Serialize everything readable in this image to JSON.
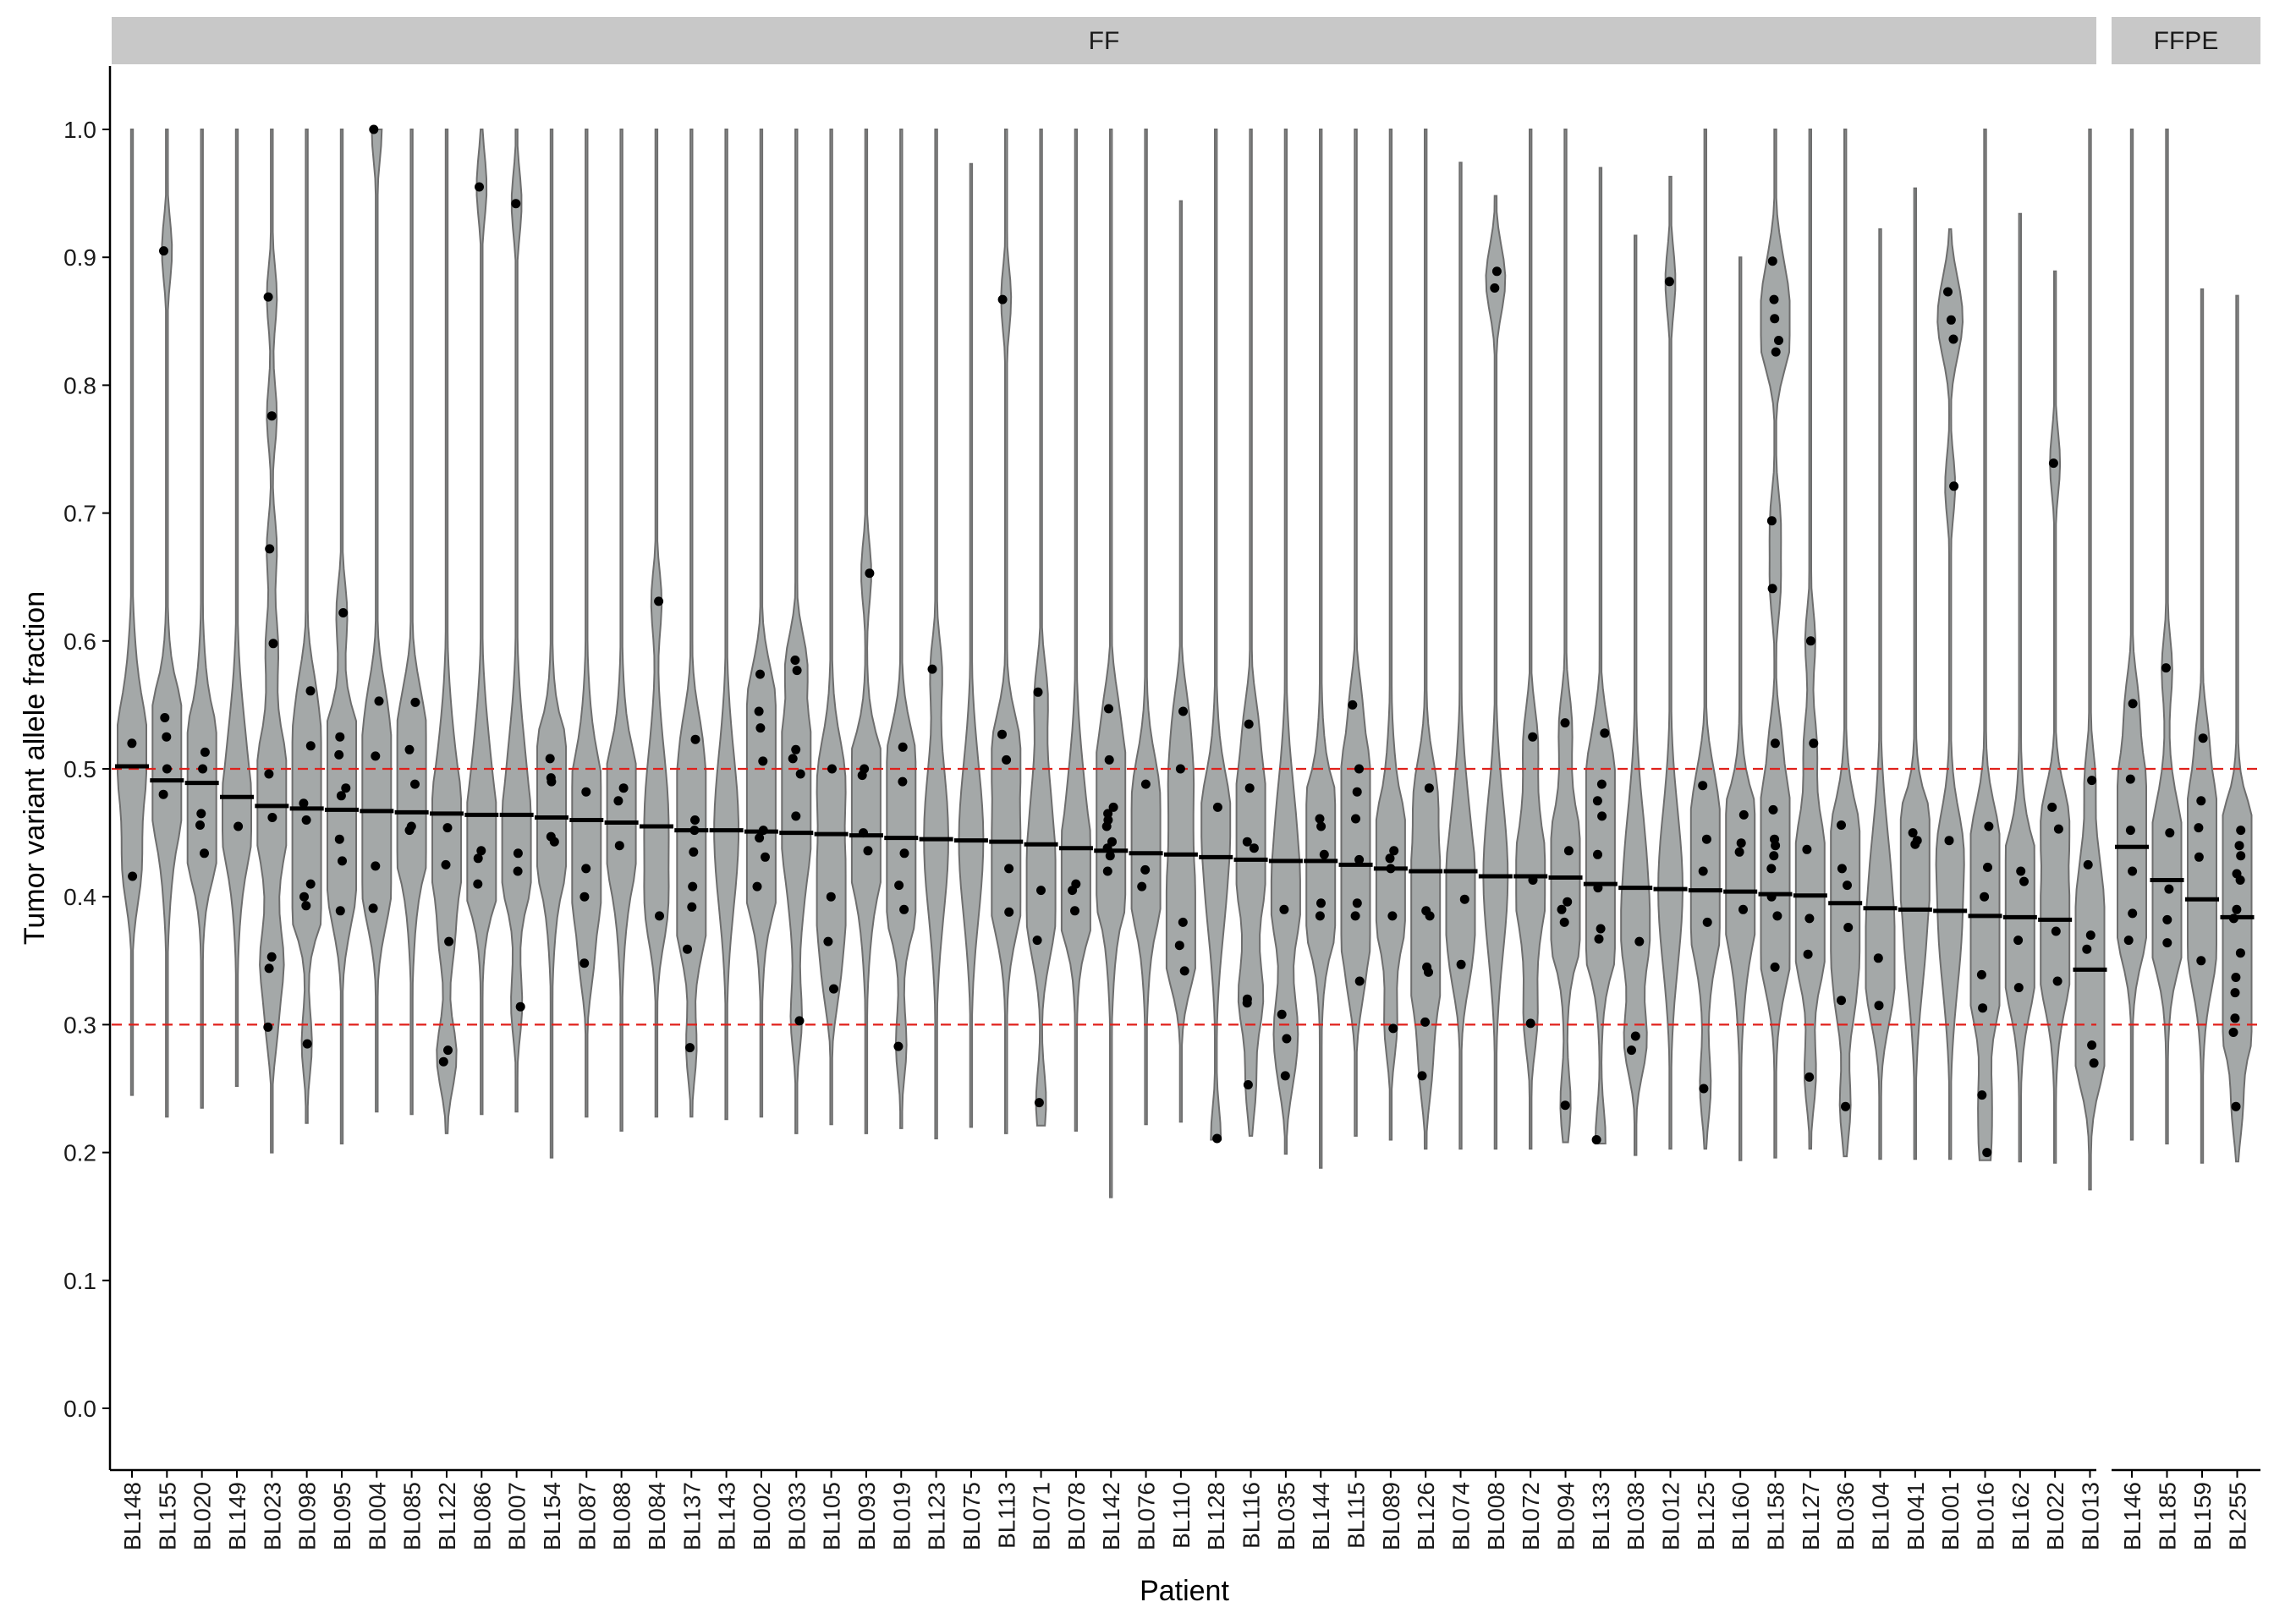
{
  "chart_data": {
    "type": "violin",
    "xlabel": "Patient",
    "ylabel": "Tumor variant allele fraction",
    "ylim": [
      -0.05,
      1.05
    ],
    "yticks": [
      0.0,
      0.1,
      0.2,
      0.3,
      0.4,
      0.5,
      0.6,
      0.7,
      0.8,
      0.9,
      1.0
    ],
    "ytick_labels": [
      "0.0",
      "0.1",
      "0.2",
      "0.3",
      "0.4",
      "0.5",
      "0.6",
      "0.7",
      "0.8",
      "0.9",
      "1.0"
    ],
    "reference_lines": [
      0.3,
      0.5
    ],
    "reference_line_color": "#e0201b",
    "violin_fill": "#a4a8a8",
    "violin_stroke": "#6e6e6e",
    "grid": false,
    "panels": [
      {
        "label": "FF",
        "categories": [
          "BL148",
          "BL155",
          "BL020",
          "BL149",
          "BL023",
          "BL098",
          "BL095",
          "BL004",
          "BL085",
          "BL122",
          "BL086",
          "BL007",
          "BL154",
          "BL087",
          "BL088",
          "BL084",
          "BL137",
          "BL143",
          "BL002",
          "BL033",
          "BL105",
          "BL093",
          "BL019",
          "BL123",
          "BL075",
          "BL113",
          "BL071",
          "BL078",
          "BL142",
          "BL076",
          "BL110",
          "BL128",
          "BL116",
          "BL035",
          "BL144",
          "BL115",
          "BL089",
          "BL126",
          "BL074",
          "BL008",
          "BL072",
          "BL094",
          "BL133",
          "BL038",
          "BL012",
          "BL125",
          "BL160",
          "BL158",
          "BL127",
          "BL036",
          "BL104",
          "BL041",
          "BL001",
          "BL016",
          "BL162",
          "BL022",
          "BL013"
        ],
        "medians": [
          0.502,
          0.491,
          0.489,
          0.478,
          0.471,
          0.469,
          0.468,
          0.467,
          0.466,
          0.465,
          0.464,
          0.464,
          0.462,
          0.46,
          0.458,
          0.455,
          0.452,
          0.452,
          0.451,
          0.45,
          0.449,
          0.448,
          0.446,
          0.445,
          0.444,
          0.443,
          0.441,
          0.438,
          0.436,
          0.434,
          0.433,
          0.431,
          0.429,
          0.428,
          0.428,
          0.425,
          0.422,
          0.42,
          0.42,
          0.416,
          0.416,
          0.415,
          0.41,
          0.407,
          0.406,
          0.405,
          0.404,
          0.402,
          0.401,
          0.395,
          0.391,
          0.39,
          0.389,
          0.385,
          0.384,
          0.382,
          0.343
        ],
        "ranges": [
          [
            0.245,
            1.0
          ],
          [
            0.228,
            1.0
          ],
          [
            0.235,
            1.0
          ],
          [
            0.252,
            1.0
          ],
          [
            0.2,
            1.0
          ],
          [
            0.223,
            1.0
          ],
          [
            0.207,
            1.0
          ],
          [
            0.232,
            1.0
          ],
          [
            0.23,
            1.0
          ],
          [
            0.215,
            1.0
          ],
          [
            0.23,
            1.0
          ],
          [
            0.232,
            1.0
          ],
          [
            0.196,
            1.0
          ],
          [
            0.228,
            1.0
          ],
          [
            0.217,
            1.0
          ],
          [
            0.228,
            1.0
          ],
          [
            0.228,
            1.0
          ],
          [
            0.226,
            1.0
          ],
          [
            0.228,
            1.0
          ],
          [
            0.215,
            1.0
          ],
          [
            0.222,
            1.0
          ],
          [
            0.215,
            1.0
          ],
          [
            0.219,
            1.0
          ],
          [
            0.211,
            1.0
          ],
          [
            0.22,
            0.973
          ],
          [
            0.215,
            1.0
          ],
          [
            0.221,
            1.0
          ],
          [
            0.217,
            1.0
          ],
          [
            0.165,
            1.0
          ],
          [
            0.222,
            1.0
          ],
          [
            0.224,
            0.944
          ],
          [
            0.21,
            1.0
          ],
          [
            0.213,
            1.0
          ],
          [
            0.199,
            1.0
          ],
          [
            0.188,
            1.0
          ],
          [
            0.213,
            1.0
          ],
          [
            0.21,
            1.0
          ],
          [
            0.203,
            1.0
          ],
          [
            0.203,
            0.974
          ],
          [
            0.203,
            0.948
          ],
          [
            0.203,
            1.0
          ],
          [
            0.208,
            1.0
          ],
          [
            0.207,
            0.97
          ],
          [
            0.198,
            0.917
          ],
          [
            0.203,
            0.963
          ],
          [
            0.203,
            1.0
          ],
          [
            0.194,
            0.9
          ],
          [
            0.196,
            1.0
          ],
          [
            0.203,
            1.0
          ],
          [
            0.197,
            1.0
          ],
          [
            0.195,
            0.922
          ],
          [
            0.195,
            0.954
          ],
          [
            0.195,
            0.922
          ],
          [
            0.194,
            1.0
          ],
          [
            0.193,
            0.934
          ],
          [
            0.192,
            0.889
          ],
          [
            0.171,
            1.0
          ]
        ],
        "points": [
          [
            0.52,
            0.416
          ],
          [
            0.905,
            0.54,
            0.525,
            0.5,
            0.48
          ],
          [
            0.513,
            0.5,
            0.465,
            0.456,
            0.434
          ],
          [
            0.455
          ],
          [
            0.869,
            0.776,
            0.672,
            0.598,
            0.496,
            0.462,
            0.353,
            0.344,
            0.298
          ],
          [
            0.561,
            0.518,
            0.473,
            0.46,
            0.41,
            0.4,
            0.393,
            0.285
          ],
          [
            0.622,
            0.525,
            0.511,
            0.485,
            0.479,
            0.445,
            0.428,
            0.389
          ],
          [
            1.0,
            0.553,
            0.51,
            0.424,
            0.391
          ],
          [
            0.552,
            0.515,
            0.488,
            0.455,
            0.452
          ],
          [
            0.454,
            0.425,
            0.365,
            0.28,
            0.271
          ],
          [
            0.955,
            0.436,
            0.43,
            0.41
          ],
          [
            0.942,
            0.434,
            0.42,
            0.314
          ],
          [
            0.508,
            0.493,
            0.49,
            0.447,
            0.443
          ],
          [
            0.482,
            0.422,
            0.4,
            0.348
          ],
          [
            0.485,
            0.475,
            0.44
          ],
          [
            0.631,
            0.385
          ],
          [
            0.523,
            0.46,
            0.452,
            0.435,
            0.408,
            0.392,
            0.359,
            0.282
          ],
          [],
          [
            0.574,
            0.545,
            0.532,
            0.506,
            0.452,
            0.446,
            0.431,
            0.408
          ],
          [
            0.585,
            0.577,
            0.515,
            0.508,
            0.496,
            0.463,
            0.303
          ],
          [
            0.5,
            0.4,
            0.365,
            0.328
          ],
          [
            0.653,
            0.5,
            0.495,
            0.45,
            0.436
          ],
          [
            0.517,
            0.49,
            0.434,
            0.409,
            0.39,
            0.283
          ],
          [
            0.578
          ],
          [],
          [
            0.867,
            0.527,
            0.507,
            0.422,
            0.388
          ],
          [
            0.56,
            0.405,
            0.366,
            0.239
          ],
          [
            0.41,
            0.405,
            0.389
          ],
          [
            0.547,
            0.507,
            0.47,
            0.465,
            0.46,
            0.455,
            0.443,
            0.438,
            0.432,
            0.42
          ],
          [
            0.488,
            0.421,
            0.408
          ],
          [
            0.545,
            0.5,
            0.38,
            0.362,
            0.342
          ],
          [
            0.47,
            0.211
          ],
          [
            0.535,
            0.485,
            0.443,
            0.438,
            0.32,
            0.317,
            0.253
          ],
          [
            0.39,
            0.308,
            0.289,
            0.26
          ],
          [
            0.461,
            0.455,
            0.433,
            0.395,
            0.385
          ],
          [
            0.55,
            0.5,
            0.482,
            0.461,
            0.429,
            0.395,
            0.385,
            0.334
          ],
          [
            0.436,
            0.43,
            0.422,
            0.385,
            0.297
          ],
          [
            0.485,
            0.389,
            0.385,
            0.345,
            0.341,
            0.302,
            0.26
          ],
          [
            0.398,
            0.347
          ],
          [
            0.889,
            0.876
          ],
          [
            0.525,
            0.413,
            0.301
          ],
          [
            0.536,
            0.436,
            0.396,
            0.39,
            0.38,
            0.237
          ],
          [
            0.528,
            0.488,
            0.475,
            0.463,
            0.433,
            0.407,
            0.375,
            0.367,
            0.21
          ],
          [
            0.365,
            0.291,
            0.28
          ],
          [
            0.881
          ],
          [
            0.487,
            0.445,
            0.42,
            0.38,
            0.25
          ],
          [
            0.464,
            0.442,
            0.435,
            0.39
          ],
          [
            0.897,
            0.867,
            0.852,
            0.835,
            0.826,
            0.694,
            0.641,
            0.52,
            0.468,
            0.445,
            0.44,
            0.432,
            0.422,
            0.4,
            0.385,
            0.345
          ],
          [
            0.6,
            0.52,
            0.437,
            0.383,
            0.355,
            0.259
          ],
          [
            0.456,
            0.422,
            0.409,
            0.376,
            0.319,
            0.236
          ],
          [
            0.352,
            0.315
          ],
          [
            0.45,
            0.444,
            0.441
          ],
          [
            0.873,
            0.851,
            0.836,
            0.721,
            0.444
          ],
          [
            0.455,
            0.423,
            0.4,
            0.339,
            0.313,
            0.245,
            0.2
          ],
          [
            0.42,
            0.412,
            0.366,
            0.329
          ],
          [
            0.739,
            0.47,
            0.453,
            0.373,
            0.334
          ],
          [
            0.491,
            0.425,
            0.37,
            0.359,
            0.284,
            0.27
          ]
        ]
      },
      {
        "label": "FFPE",
        "categories": [
          "BL146",
          "BL185",
          "BL159",
          "BL255"
        ],
        "medians": [
          0.439,
          0.413,
          0.398,
          0.384
        ],
        "ranges": [
          [
            0.21,
            1.0
          ],
          [
            0.207,
            1.0
          ],
          [
            0.192,
            0.875
          ],
          [
            0.193,
            0.87
          ]
        ],
        "points": [
          [
            0.551,
            0.492,
            0.452,
            0.42,
            0.387,
            0.366
          ],
          [
            0.579,
            0.45,
            0.406,
            0.382,
            0.364
          ],
          [
            0.524,
            0.475,
            0.454,
            0.431,
            0.35
          ],
          [
            0.452,
            0.44,
            0.432,
            0.418,
            0.413,
            0.39,
            0.383,
            0.356,
            0.337,
            0.325,
            0.305,
            0.294,
            0.236
          ]
        ]
      }
    ]
  }
}
